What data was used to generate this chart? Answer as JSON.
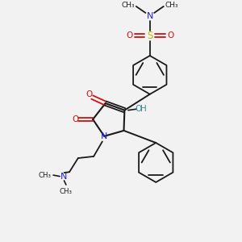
{
  "bg_color": "#f2f2f2",
  "bond_color": "#1a1a1a",
  "n_color": "#2222cc",
  "o_color": "#cc1111",
  "s_color": "#bbbb00",
  "oh_color": "#3a8a8a",
  "figsize": [
    3.0,
    3.0
  ],
  "dpi": 100,
  "xlim": [
    0,
    10
  ],
  "ylim": [
    0,
    10
  ]
}
